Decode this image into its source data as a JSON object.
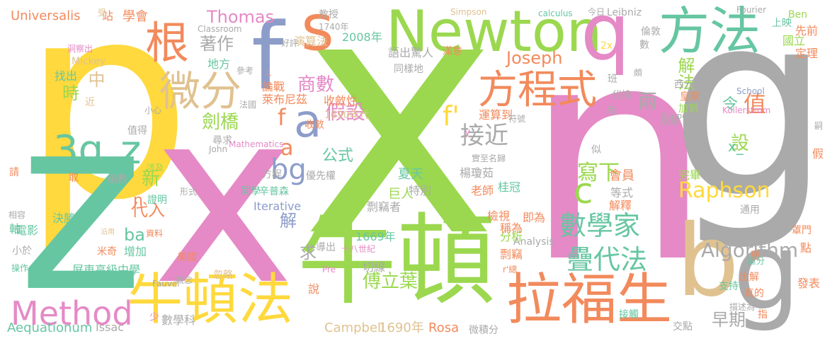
{
  "palette": {
    "yellow": "#FFD93D",
    "green": "#9BD84F",
    "pink": "#E58AC6",
    "teal": "#66C6A2",
    "gray": "#AAAAAA",
    "orange": "#F28A5C",
    "slate": "#8D9DCA",
    "tan": "#E0C290"
  },
  "words": [
    {
      "t": "x",
      "c": "green"
    },
    {
      "t": "n",
      "c": "pink"
    },
    {
      "t": "g",
      "c": "gray"
    },
    {
      "t": "p",
      "c": "yellow"
    },
    {
      "t": "z",
      "c": "teal"
    },
    {
      "t": "x",
      "c": "pink"
    },
    {
      "t": "牛頓",
      "c": "green"
    },
    {
      "t": "Newton",
      "c": "green"
    },
    {
      "t": "牛頓法",
      "c": "yellow"
    },
    {
      "t": "拉福生",
      "c": "orange"
    },
    {
      "t": "方法",
      "c": "teal"
    },
    {
      "t": "b",
      "c": "tan"
    },
    {
      "t": "g",
      "c": "gray"
    },
    {
      "t": "方程式",
      "c": "orange"
    },
    {
      "t": "q",
      "c": "pink"
    },
    {
      "t": "s",
      "c": "orange"
    },
    {
      "t": "f",
      "c": "slate"
    },
    {
      "t": "根",
      "c": "orange"
    },
    {
      "t": "微分",
      "c": "tan"
    },
    {
      "t": "Method",
      "c": "pink"
    },
    {
      "t": "3g",
      "c": "teal"
    },
    {
      "t": "z",
      "c": "teal"
    },
    {
      "t": "a",
      "c": "slate"
    },
    {
      "t": "c",
      "c": "green"
    },
    {
      "t": "數學家",
      "c": "teal"
    },
    {
      "t": "bg",
      "c": "slate"
    },
    {
      "t": "Raphson",
      "c": "yellow"
    },
    {
      "t": "疊代法",
      "c": "teal"
    },
    {
      "t": "接近",
      "c": "gray"
    },
    {
      "t": "Algorithm",
      "c": "gray"
    },
    {
      "t": "傅立葉",
      "c": "green"
    },
    {
      "t": "寫下",
      "c": "green"
    },
    {
      "t": "商數",
      "c": "pink"
    },
    {
      "t": "假設",
      "c": "pink"
    },
    {
      "t": "Joseph",
      "c": "orange"
    },
    {
      "t": "著作",
      "c": "gray"
    },
    {
      "t": "Thomas",
      "c": "pink"
    },
    {
      "t": "f'",
      "c": "yellow"
    },
    {
      "t": "值",
      "c": "orange"
    },
    {
      "t": "兩",
      "c": "gray"
    },
    {
      "t": "f",
      "c": "orange"
    },
    {
      "t": "a",
      "c": "orange"
    },
    {
      "t": "早期",
      "c": "gray"
    },
    {
      "t": "中",
      "c": "tan"
    },
    {
      "t": "時",
      "c": "green"
    },
    {
      "t": "劍橋",
      "c": "green"
    },
    {
      "t": "設",
      "c": "green"
    },
    {
      "t": "解法",
      "c": "green"
    },
    {
      "t": "令",
      "c": "teal"
    },
    {
      "t": "公式",
      "c": "teal"
    },
    {
      "t": "新",
      "c": "green"
    },
    {
      "t": "ba",
      "c": "teal"
    },
    {
      "t": "n",
      "c": "orange"
    },
    {
      "t": "代入",
      "c": "orange"
    },
    {
      "t": "求",
      "c": "gray"
    },
    {
      "t": "解",
      "c": "slate"
    },
    {
      "t": "Universalis",
      "c": "orange"
    },
    {
      "t": "Aequationum",
      "c": "teal"
    },
    {
      "t": "Issac",
      "c": "gray"
    },
    {
      "t": "Campbell",
      "c": "tan"
    },
    {
      "t": "1690年",
      "c": "tan"
    },
    {
      "t": "Rosa",
      "c": "orange"
    },
    {
      "t": "微積分",
      "c": "gray"
    },
    {
      "t": "交點",
      "c": "gray"
    },
    {
      "t": "數學科",
      "c": "gray"
    },
    {
      "t": "少",
      "c": "pink"
    },
    {
      "t": "說",
      "c": "orange"
    },
    {
      "t": "切線",
      "c": "gray"
    },
    {
      "t": "Pre",
      "c": "pink"
    },
    {
      "t": "導出",
      "c": "gray"
    },
    {
      "t": "十八世紀",
      "c": "pink"
    },
    {
      "t": "1669年",
      "c": "teal"
    },
    {
      "t": "分析",
      "c": "green"
    },
    {
      "t": "Analysis",
      "c": "gray"
    },
    {
      "t": "即為",
      "c": "orange"
    },
    {
      "t": "剽竊",
      "c": "orange"
    },
    {
      "t": "稱為",
      "c": "orange"
    },
    {
      "t": "檢視",
      "c": "orange"
    },
    {
      "t": "剽竊者",
      "c": "gray"
    },
    {
      "t": "巨人",
      "c": "green"
    },
    {
      "t": "特別",
      "c": "gray"
    },
    {
      "t": "夏天",
      "c": "teal"
    },
    {
      "t": "楊瓊茹",
      "c": "gray"
    },
    {
      "t": "老師",
      "c": "orange"
    },
    {
      "t": "桂冠",
      "c": "teal"
    },
    {
      "t": "實至名歸",
      "c": "gray"
    },
    {
      "t": "會員",
      "c": "orange"
    },
    {
      "t": "等式",
      "c": "gray"
    },
    {
      "t": "解釋",
      "c": "orange"
    },
    {
      "t": "通用",
      "c": "gray"
    },
    {
      "t": "完畢",
      "c": "green"
    },
    {
      "t": "皇家",
      "c": "orange"
    },
    {
      "t": "西元",
      "c": "gray"
    },
    {
      "t": "代換",
      "c": "gray"
    },
    {
      "t": "求解",
      "c": "gray"
    },
    {
      "t": "加到",
      "c": "green"
    },
    {
      "t": "班",
      "c": "gray"
    },
    {
      "t": "肩",
      "c": "gray"
    },
    {
      "t": "似",
      "c": "gray"
    },
    {
      "t": "運算到",
      "c": "orange"
    },
    {
      "t": "符號",
      "c": "gray"
    },
    {
      "t": "y",
      "c": "pink"
    },
    {
      "t": "收斂",
      "c": "orange"
    },
    {
      "t": "Mathematics",
      "c": "pink"
    },
    {
      "t": "John",
      "c": "gray"
    },
    {
      "t": "尋求",
      "c": "gray"
    },
    {
      "t": "優先權",
      "c": "gray"
    },
    {
      "t": "1690年代",
      "c": "tan"
    },
    {
      "t": "收斂性",
      "c": "orange"
    },
    {
      "t": "萊布尼茲",
      "c": "orange"
    },
    {
      "t": "論戰",
      "c": "orange"
    },
    {
      "t": "同樣地",
      "c": "gray"
    },
    {
      "t": "語出驚人",
      "c": "gray"
    },
    {
      "t": "滿意",
      "c": "orange"
    },
    {
      "t": "2008年",
      "c": "teal"
    },
    {
      "t": "1740年",
      "c": "gray"
    },
    {
      "t": "教授",
      "c": "gray"
    },
    {
      "t": "演算法",
      "c": "tan"
    },
    {
      "t": "好評",
      "c": "gray"
    },
    {
      "t": "地方",
      "c": "teal"
    },
    {
      "t": "參考",
      "c": "gray"
    },
    {
      "t": "L",
      "c": "orange"
    },
    {
      "t": "法國",
      "c": "gray"
    },
    {
      "t": "小心",
      "c": "gray"
    },
    {
      "t": "值得",
      "c": "gray"
    },
    {
      "t": "函數",
      "c": "gray"
    },
    {
      "t": "涉及",
      "c": "green"
    },
    {
      "t": "證明",
      "c": "teal"
    },
    {
      "t": "形式",
      "c": "gray"
    },
    {
      "t": "方程",
      "c": "gray"
    },
    {
      "t": "同學",
      "c": "teal"
    },
    {
      "t": "辛普森",
      "c": "teal"
    },
    {
      "t": "Iterative",
      "c": "slate"
    },
    {
      "t": "米奇",
      "c": "orange"
    },
    {
      "t": "增加",
      "c": "teal"
    },
    {
      "t": "屏東高級中學",
      "c": "teal"
    },
    {
      "t": "美國",
      "c": "orange"
    },
    {
      "t": "概念",
      "c": "gray"
    },
    {
      "t": "忽略",
      "c": "tan"
    },
    {
      "t": "資料",
      "c": "orange"
    },
    {
      "t": "沿用",
      "c": "tan"
    },
    {
      "t": "決勝",
      "c": "teal"
    },
    {
      "t": "電影",
      "c": "teal"
    },
    {
      "t": "軸",
      "c": "teal"
    },
    {
      "t": "相容",
      "c": "gray"
    },
    {
      "t": "小於",
      "c": "gray"
    },
    {
      "t": "操作",
      "c": "teal"
    },
    {
      "t": "Fauvel",
      "c": "gray"
    },
    {
      "t": "請",
      "c": "orange"
    },
    {
      "t": "取",
      "c": "orange"
    },
    {
      "t": "近",
      "c": "tan"
    },
    {
      "t": "找出",
      "c": "teal"
    },
    {
      "t": "Mickey",
      "c": "tan"
    },
    {
      "t": "洞察出",
      "c": "pink"
    },
    {
      "t": "站",
      "c": "orange"
    },
    {
      "t": "學會",
      "c": "orange"
    },
    {
      "t": "受",
      "c": "tan"
    },
    {
      "t": "Classroom",
      "c": "gray"
    },
    {
      "t": "Simpson",
      "c": "tan"
    },
    {
      "t": "calculus",
      "c": "teal"
    },
    {
      "t": "今日",
      "c": "gray"
    },
    {
      "t": "Leibniz",
      "c": "gray"
    },
    {
      "t": "Fourier",
      "c": "gray"
    },
    {
      "t": "Ben",
      "c": "green"
    },
    {
      "t": "先前",
      "c": "orange"
    },
    {
      "t": "上映",
      "c": "teal"
    },
    {
      "t": "國立",
      "c": "green"
    },
    {
      "t": "定理",
      "c": "orange"
    },
    {
      "t": "倫敦",
      "c": "gray"
    },
    {
      "t": "數",
      "c": "gray"
    },
    {
      "t": "2x",
      "c": "yellow"
    },
    {
      "t": "頗",
      "c": "gray"
    },
    {
      "t": "School",
      "c": "slate"
    },
    {
      "t": "Kollerstrom",
      "c": "pink"
    },
    {
      "t": "Simpon",
      "c": "gray"
    },
    {
      "t": "x_",
      "c": "teal"
    },
    {
      "t": "更",
      "c": "orange"
    },
    {
      "t": "點",
      "c": "orange"
    },
    {
      "t": "罩門",
      "c": "orange"
    },
    {
      "t": "假",
      "c": "orange"
    },
    {
      "t": "嗣",
      "c": "gray"
    },
    {
      "t": "區分",
      "c": "teal"
    },
    {
      "t": "出解",
      "c": "orange"
    },
    {
      "t": "真的",
      "c": "orange"
    },
    {
      "t": "支持",
      "c": "teal"
    },
    {
      "t": "發表",
      "c": "orange"
    },
    {
      "t": "描述為",
      "c": "gray"
    },
    {
      "t": "指",
      "c": "orange"
    },
    {
      "t": "接觸",
      "c": "teal"
    },
    {
      "t": "r'總",
      "c": "orange"
    }
  ]
}
